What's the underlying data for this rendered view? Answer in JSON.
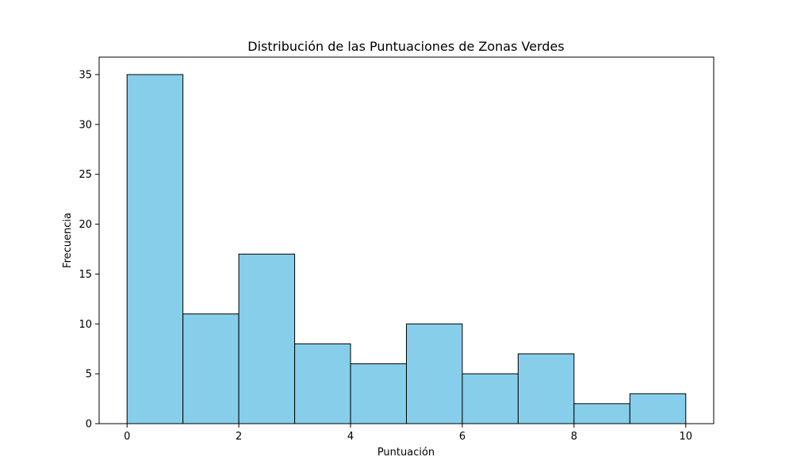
{
  "chart_data": {
    "type": "bar",
    "title": "Distribución de las Puntuaciones de Zonas Verdes",
    "xlabel": "Puntuación",
    "ylabel": "Frecuencia",
    "bin_edges": [
      0,
      1,
      2,
      3,
      4,
      5,
      6,
      7,
      8,
      9,
      10
    ],
    "values": [
      35,
      11,
      17,
      8,
      6,
      10,
      5,
      7,
      2,
      3
    ],
    "xlim": [
      -0.5,
      10.5
    ],
    "ylim": [
      0,
      36.75
    ],
    "xticks": [
      0,
      2,
      4,
      6,
      8,
      10
    ],
    "yticks": [
      0,
      5,
      10,
      15,
      20,
      25,
      30,
      35
    ],
    "bar_color": "#87ceeb",
    "edge_color": "#000000",
    "grid": false
  }
}
